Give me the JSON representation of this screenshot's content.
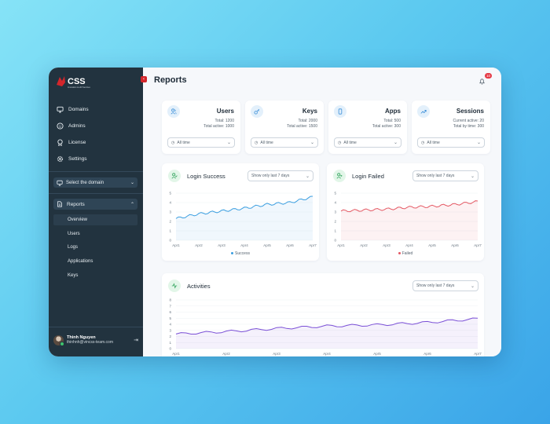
{
  "app": {
    "logo_text": "CSS",
    "logo_subtitle": "Innovation & eID Services"
  },
  "sidebar": {
    "items": [
      {
        "label": "Domains",
        "icon": "monitor-icon"
      },
      {
        "label": "Admins",
        "icon": "smile-icon"
      },
      {
        "label": "License",
        "icon": "award-icon"
      },
      {
        "label": "Settings",
        "icon": "gear-icon"
      }
    ],
    "domain_select": "Select the domain",
    "reports_label": "Reports",
    "reports_sub": [
      "Overview",
      "Users",
      "Logs",
      "Applications",
      "Keys"
    ],
    "active_sub": "Overview",
    "user": {
      "name": "Thinh Nguyen",
      "email": "thinhnh@vincss-team.com"
    }
  },
  "header": {
    "title": "Reports",
    "notification_count": "10"
  },
  "stats": [
    {
      "title": "Users",
      "line1": "Total: 1200",
      "line2": "Total active: 1000",
      "filter": "All time",
      "icon": "users-icon"
    },
    {
      "title": "Keys",
      "line1": "Total: 2000",
      "line2": "Total active: 1500",
      "filter": "All time",
      "icon": "key-icon"
    },
    {
      "title": "Apps",
      "line1": "Total: 500",
      "line2": "Total active: 300",
      "filter": "All time",
      "icon": "phone-icon"
    },
    {
      "title": "Sessions",
      "line1": "Current active: 20",
      "line2": "Total by time: 300",
      "filter": "All time",
      "icon": "trend-icon"
    }
  ],
  "charts": {
    "login_success": {
      "title": "Login Success",
      "filter": "Show only last 7 days",
      "legend": "Success"
    },
    "login_failed": {
      "title": "Login Failed",
      "filter": "Show only last 7 days",
      "legend": "Failed"
    },
    "activities": {
      "title": "Activities",
      "filter": "Show only last 7 days"
    }
  },
  "colors": {
    "success": "#3a9ee0",
    "failed": "#e45863",
    "activities": "#7a4fd6",
    "sidebar": "#22333f"
  },
  "chart_data": [
    {
      "type": "area",
      "x": [
        "Apr1",
        "Apr2",
        "Apr3",
        "Apr4",
        "Apr5",
        "Apr6",
        "Apr7"
      ],
      "yticks": [
        "0",
        "1",
        "2",
        "3",
        "4",
        "5"
      ],
      "ylim": [
        0,
        5
      ],
      "series": [
        {
          "name": "Success",
          "values": [
            2.3,
            2.8,
            3.1,
            3.4,
            3.8,
            4.0,
            4.6
          ]
        }
      ]
    },
    {
      "type": "area",
      "x": [
        "Apr1",
        "Apr2",
        "Apr3",
        "Apr4",
        "Apr5",
        "Apr6",
        "Apr7"
      ],
      "yticks": [
        "0",
        "1",
        "2",
        "3",
        "4",
        "5"
      ],
      "ylim": [
        0,
        5
      ],
      "series": [
        {
          "name": "Failed",
          "values": [
            3.1,
            3.2,
            3.3,
            3.5,
            3.6,
            3.8,
            4.1
          ]
        }
      ]
    },
    {
      "type": "area",
      "x": [
        "Apr1",
        "Apr2",
        "Apr3",
        "Apr4",
        "Apr5",
        "Apr6",
        "Apr7"
      ],
      "yticks": [
        "0",
        "1",
        "2",
        "3",
        "4",
        "5",
        "6",
        "7",
        "8"
      ],
      "ylim": [
        0,
        8
      ],
      "series": [
        {
          "values": [
            2.4,
            2.8,
            3.3,
            3.7,
            3.9,
            4.3,
            4.9
          ]
        }
      ]
    }
  ]
}
